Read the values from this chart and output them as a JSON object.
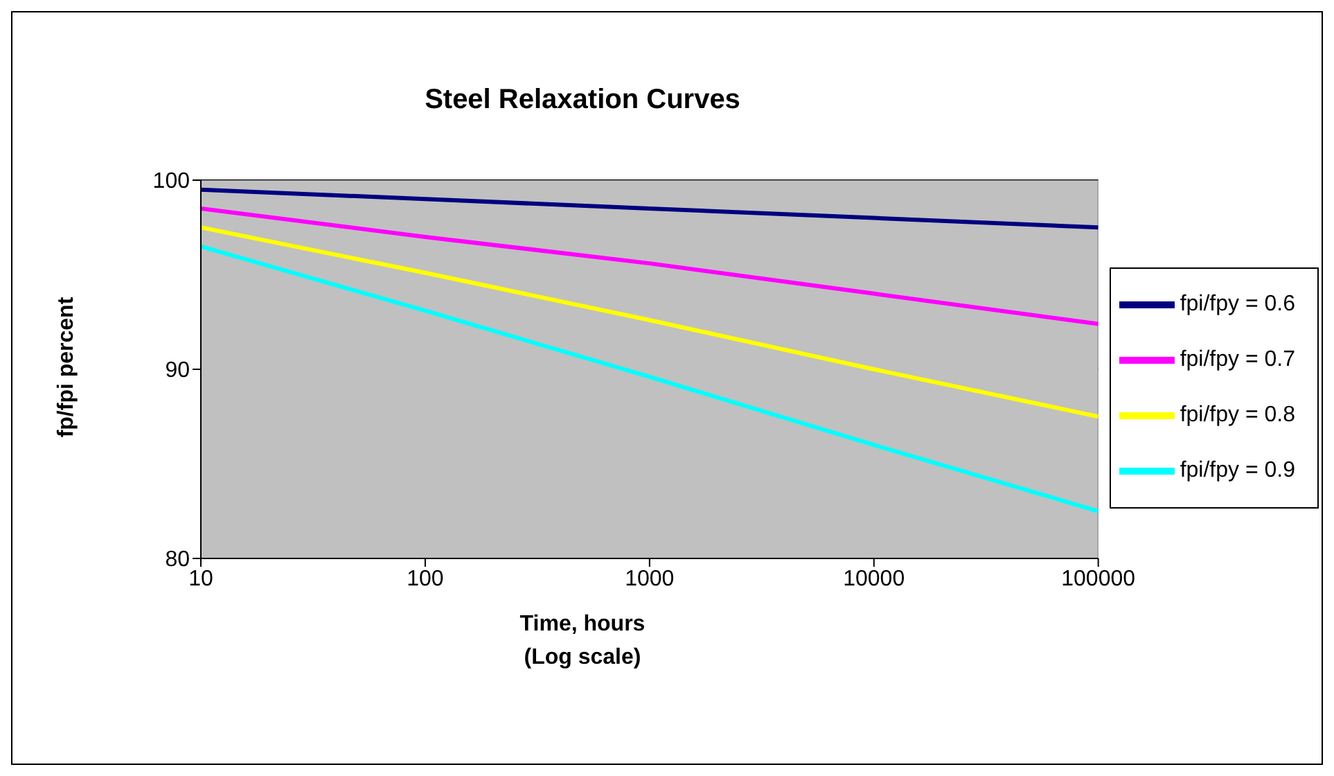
{
  "chart_data": {
    "type": "line",
    "title": "Steel Relaxation Curves",
    "xlabel": "Time, hours\n(Log scale)",
    "ylabel": "fp/fpi percent",
    "x": [
      10,
      100,
      1000,
      10000,
      100000
    ],
    "series": [
      {
        "name": "fpi/fpy = 0.6",
        "color": "#000080",
        "values": [
          99.5,
          99.0,
          98.5,
          98.0,
          97.5
        ]
      },
      {
        "name": "fpi/fpy = 0.7",
        "color": "#ff00ff",
        "values": [
          98.5,
          97.0,
          95.6,
          94.0,
          92.4
        ]
      },
      {
        "name": "fpi/fpy = 0.8",
        "color": "#ffff00",
        "values": [
          97.5,
          95.1,
          92.6,
          90.0,
          87.5
        ]
      },
      {
        "name": "fpi/fpy = 0.9",
        "color": "#00ffff",
        "values": [
          96.5,
          93.1,
          89.6,
          86.0,
          82.5
        ]
      }
    ],
    "log": "x",
    "xlim": [
      10,
      100000
    ],
    "xticks": [
      10,
      100,
      1000,
      10000,
      100000
    ],
    "ylim": [
      80,
      100
    ],
    "yticks": [
      80,
      90,
      100
    ],
    "grid": "y",
    "legend": "right",
    "marker": "none",
    "line_style": "solid"
  }
}
